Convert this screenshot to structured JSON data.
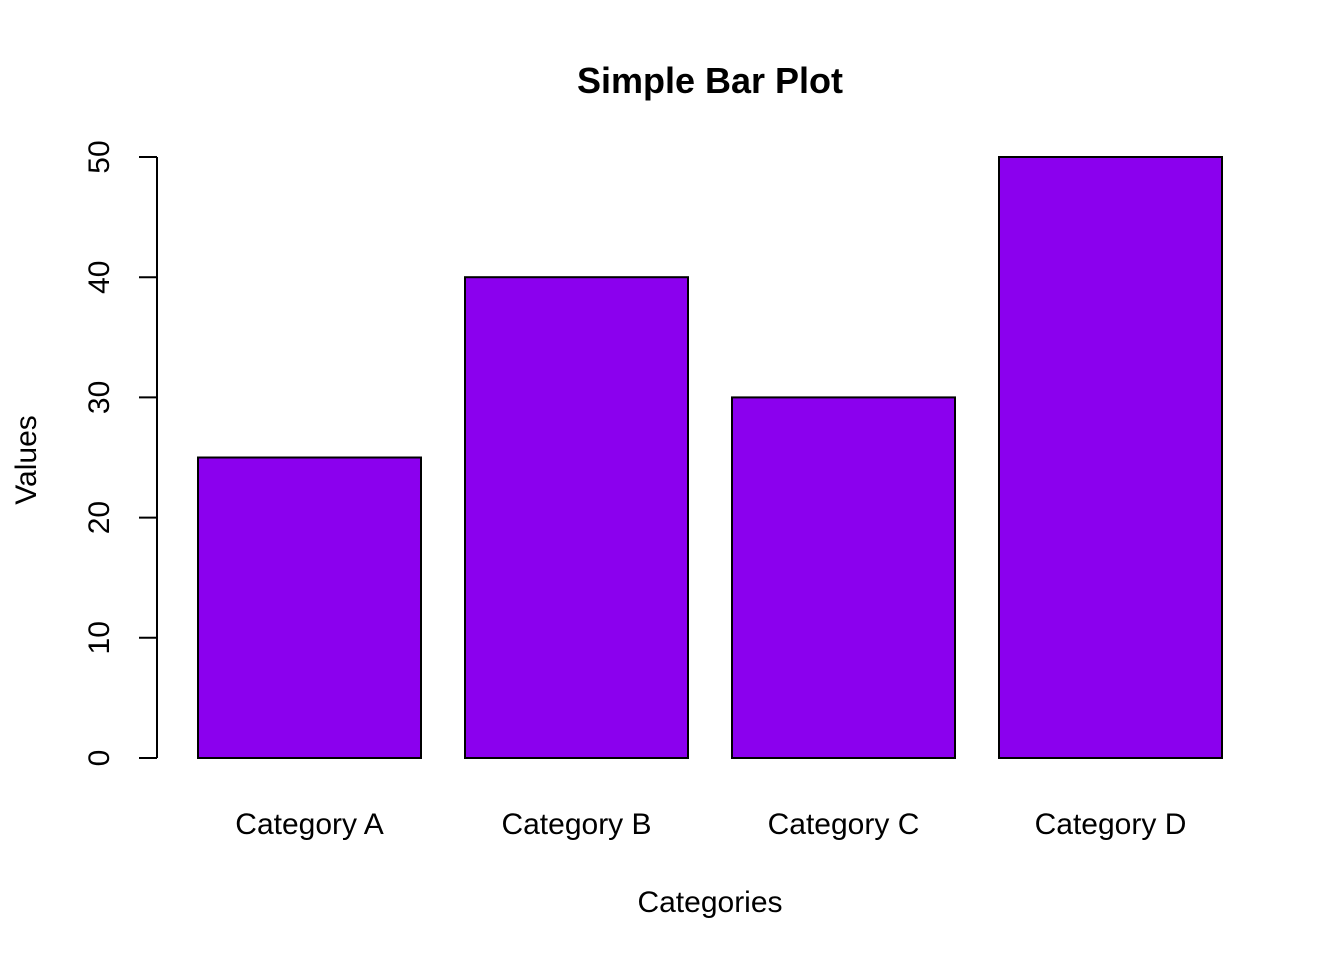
{
  "chart_data": {
    "type": "bar",
    "title": "Simple Bar Plot",
    "xlabel": "Categories",
    "ylabel": "Values",
    "categories": [
      "Category A",
      "Category B",
      "Category C",
      "Category D"
    ],
    "values": [
      25,
      40,
      30,
      50
    ],
    "ylim": [
      0,
      50
    ],
    "yticks": [
      0,
      10,
      20,
      30,
      40,
      50
    ],
    "bar_color": "#8B00EE",
    "bar_border_color": "#000000",
    "grid": false,
    "legend": "none"
  }
}
